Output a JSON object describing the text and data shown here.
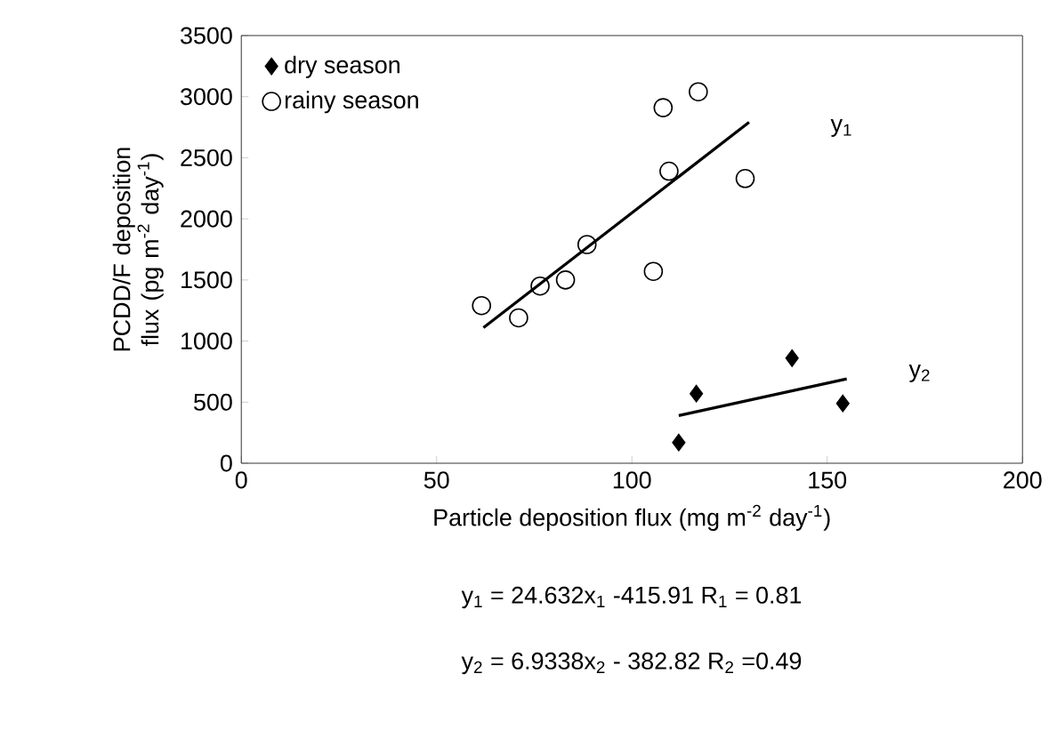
{
  "chart_data": {
    "type": "scatter",
    "xlabel": "Particle deposition flux (mg m$^{-2}$ day$^{-1}$)",
    "ylabel": "PCDD/F deposition flux (pg m$^{-2}$ day$^{-1}$)",
    "xlim": [
      0,
      200
    ],
    "ylim": [
      0,
      3500
    ],
    "xticks": [
      0,
      50,
      100,
      150,
      200
    ],
    "yticks": [
      0,
      500,
      1000,
      1500,
      2000,
      2500,
      3000,
      3500
    ],
    "legend": "top left",
    "grid": false,
    "series": [
      {
        "name": "dry season",
        "type": "scatter",
        "marker": "diamond",
        "color": "#000000",
        "x": [
          112,
          116.5,
          141,
          154
        ],
        "values": [
          170,
          570,
          860,
          490
        ]
      },
      {
        "name": "rainy season",
        "type": "scatter",
        "marker": "circle",
        "color": "#000000",
        "x": [
          61.5,
          71,
          76.5,
          83,
          88.5,
          105.5,
          108,
          109.5,
          117,
          129
        ],
        "values": [
          1290,
          1190,
          1450,
          1500,
          1790,
          1570,
          2910,
          2390,
          3040,
          2330
        ]
      },
      {
        "type": "line",
        "marker": "none",
        "color": "#000000",
        "x": [
          62,
          130
        ],
        "values": [
          1110,
          2790
        ]
      },
      {
        "type": "line",
        "marker": "none",
        "color": "#000000",
        "x": [
          112,
          155
        ],
        "values": [
          390,
          690
        ]
      }
    ],
    "annotations": [
      "y$_{1}$",
      "y$_{2}$",
      "y$_{1}$ = 24.632x$_{1}$ -415.91  R$_{1}$ = 0.81",
      "y$_{2}$ = 6.9338x$_{2}$ - 382.82  R$_{2}$ =0.49"
    ]
  }
}
